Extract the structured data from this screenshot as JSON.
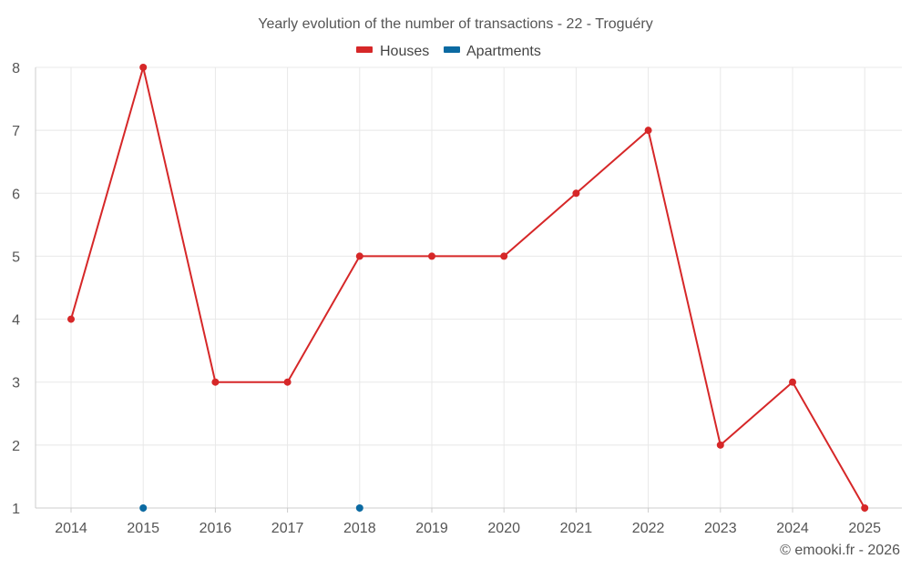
{
  "chart_data": {
    "type": "line",
    "title": "Yearly evolution of the number of transactions - 22 - Troguéry",
    "xlabel": "",
    "ylabel": "",
    "categories": [
      "2014",
      "2015",
      "2016",
      "2017",
      "2018",
      "2019",
      "2020",
      "2021",
      "2022",
      "2023",
      "2024",
      "2025"
    ],
    "ylim": [
      1,
      8
    ],
    "yticks": [
      1,
      2,
      3,
      4,
      5,
      6,
      7,
      8
    ],
    "grid": true,
    "legend_position": "top-center",
    "series": [
      {
        "name": "Houses",
        "color": "#d62728",
        "values": [
          4,
          8,
          3,
          3,
          5,
          5,
          5,
          6,
          7,
          2,
          3,
          1
        ]
      },
      {
        "name": "Apartments",
        "color": "#0b6aa2",
        "values": [
          null,
          1,
          null,
          null,
          1,
          null,
          null,
          null,
          null,
          null,
          null,
          null
        ]
      }
    ]
  },
  "credit": "© emooki.fr - 2026"
}
